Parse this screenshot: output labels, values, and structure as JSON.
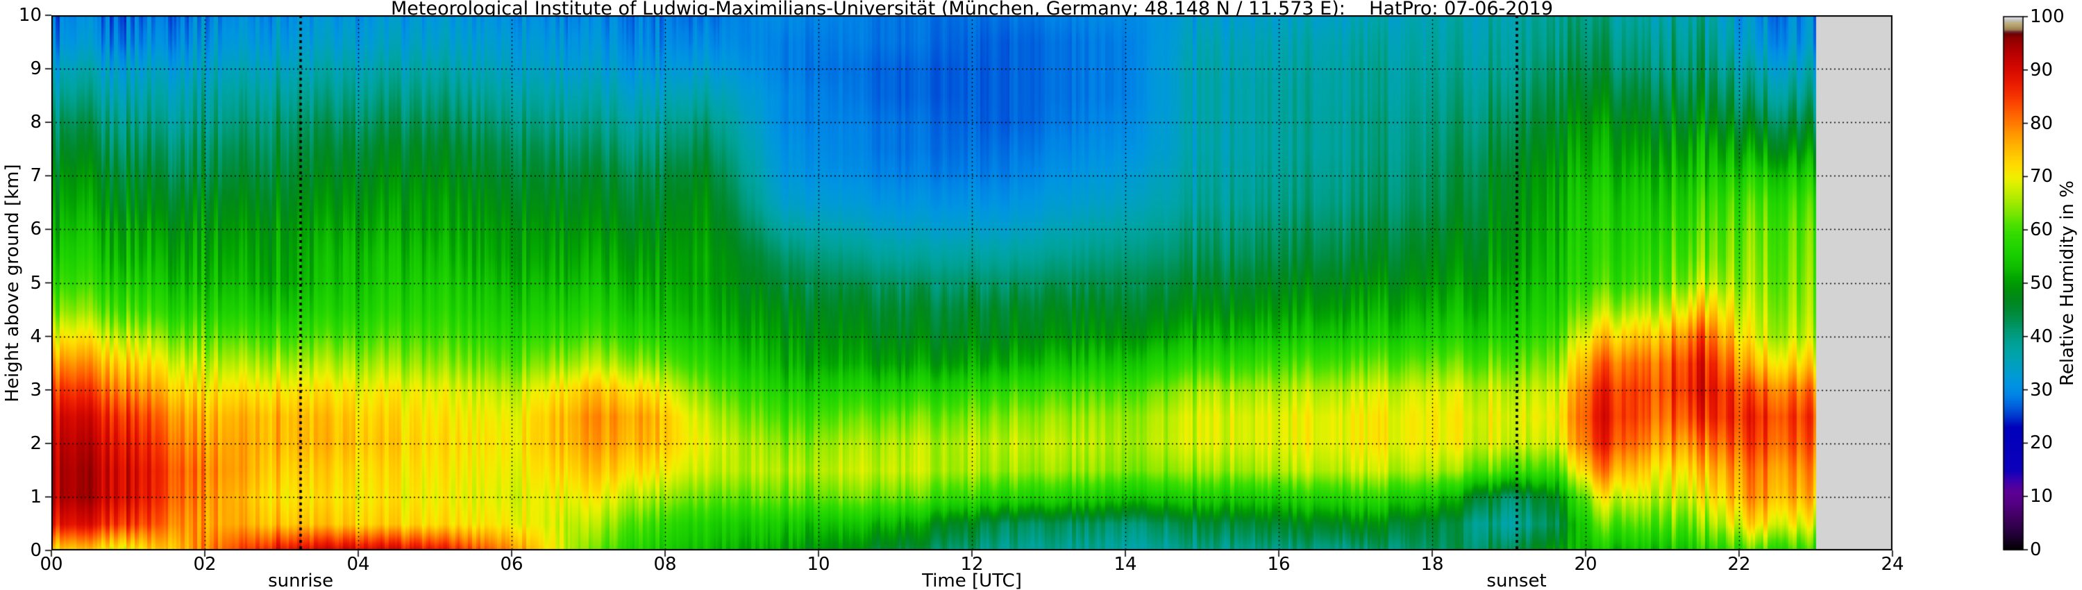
{
  "figure": {
    "title": "Meteorological Institute of Ludwig-Maximilians-Universität (München, Germany; 48.148 N / 11.573 E):    HatPro: 07-06-2019",
    "background_color": "#ffffff",
    "text_color": "#000000"
  },
  "axes": {
    "x": {
      "label": "Time [UTC]",
      "min": 0,
      "max": 24,
      "tick_values": [
        0,
        2,
        4,
        6,
        8,
        10,
        12,
        14,
        16,
        18,
        20,
        22,
        24
      ],
      "tick_labels": [
        "00",
        "02",
        "04",
        "06",
        "08",
        "10",
        "12",
        "14",
        "16",
        "18",
        "20",
        "22",
        "24"
      ]
    },
    "y": {
      "label": "Height above ground [km]",
      "min": 0,
      "max": 10,
      "tick_values": [
        0,
        1,
        2,
        3,
        4,
        5,
        6,
        7,
        8,
        9,
        10
      ],
      "tick_labels": [
        "0",
        "1",
        "2",
        "3",
        "4",
        "5",
        "6",
        "7",
        "8",
        "9",
        "10"
      ]
    },
    "grid": true,
    "grid_style": "dotted-black"
  },
  "annotations": {
    "sunrise": {
      "label": "sunrise",
      "time_utc": 3.25,
      "line_style": "bold-dotted-black"
    },
    "sunset": {
      "label": "sunset",
      "time_utc": 19.1,
      "line_style": "bold-dotted-black"
    }
  },
  "no_data": {
    "from_hour": 23,
    "to_hour": 24,
    "color": "#d3d3d3"
  },
  "colorbar": {
    "label": "Relative Humidity in %",
    "tick_values": [
      0,
      10,
      20,
      30,
      40,
      50,
      60,
      70,
      80,
      90,
      100
    ],
    "tick_labels": [
      "0",
      "10",
      "20",
      "30",
      "40",
      "50",
      "60",
      "70",
      "80",
      "90",
      "100"
    ],
    "colormap_stops": [
      [
        0,
        "#000000"
      ],
      [
        3,
        "#24003a"
      ],
      [
        6,
        "#40005f"
      ],
      [
        9,
        "#560087"
      ],
      [
        11,
        "#5c0096"
      ],
      [
        13,
        "#3c00ae"
      ],
      [
        15,
        "#0d00bb"
      ],
      [
        23,
        "#0000bb"
      ],
      [
        25,
        "#0035cc"
      ],
      [
        27,
        "#0061dd"
      ],
      [
        29,
        "#0083e6"
      ],
      [
        31,
        "#0094e2"
      ],
      [
        33,
        "#009cd2"
      ],
      [
        35,
        "#00a1bd"
      ],
      [
        37,
        "#00a4a8"
      ],
      [
        39,
        "#00a194"
      ],
      [
        41,
        "#009a76"
      ],
      [
        43,
        "#009153"
      ],
      [
        45,
        "#008a33"
      ],
      [
        47,
        "#00881c"
      ],
      [
        49,
        "#00920a"
      ],
      [
        51,
        "#02a600"
      ],
      [
        53,
        "#10bd00"
      ],
      [
        55,
        "#17cc00"
      ],
      [
        57,
        "#22d500"
      ],
      [
        59,
        "#32db00"
      ],
      [
        61,
        "#4ce100"
      ],
      [
        63,
        "#78e600"
      ],
      [
        65,
        "#9dea00"
      ],
      [
        67,
        "#c2ee00"
      ],
      [
        69,
        "#e2f100"
      ],
      [
        70,
        "#f2ef00"
      ],
      [
        72,
        "#ffdd00"
      ],
      [
        74,
        "#ffc900"
      ],
      [
        76,
        "#ffb100"
      ],
      [
        78,
        "#ff9800"
      ],
      [
        80,
        "#ff7b00"
      ],
      [
        82,
        "#ff6000"
      ],
      [
        84,
        "#fa4300"
      ],
      [
        86,
        "#f22b00"
      ],
      [
        88,
        "#e71700"
      ],
      [
        90,
        "#d80b00"
      ],
      [
        92,
        "#c60400"
      ],
      [
        94,
        "#ae0000"
      ],
      [
        96,
        "#8e0000"
      ],
      [
        96.8,
        "#700000"
      ],
      [
        97.2,
        "#6b2432"
      ],
      [
        97.6,
        "#9c7f4e"
      ],
      [
        98.4,
        "#b5a36e"
      ],
      [
        99,
        "#c2b488"
      ],
      [
        99.3,
        "#bdbdbd"
      ],
      [
        99.7,
        "#d4d4d4"
      ],
      [
        100,
        "#ebebeb"
      ]
    ]
  },
  "chart_data": {
    "type": "heatmap",
    "title": "Meteorological Institute of Ludwig-Maximilians-Universität (München, Germany; 48.148 N / 11.573 E):    HatPro: 07-06-2019",
    "xlabel": "Time [UTC]",
    "ylabel": "Height above ground [km]",
    "value_label": "Relative Humidity in %",
    "xlim": [
      0,
      24
    ],
    "ylim": [
      0,
      10
    ],
    "value_range": [
      0,
      100
    ],
    "data_end_hour": 23,
    "x_time_hours": [
      0,
      1,
      2,
      3,
      4,
      5,
      6,
      7,
      7.8,
      8.5,
      9.5,
      11,
      12.5,
      14,
      15,
      16,
      17,
      18,
      19,
      19.6,
      20.2,
      21,
      21.5,
      22.2,
      23
    ],
    "y_heights_km": [
      0,
      0.5,
      1,
      1.5,
      2,
      2.5,
      3,
      3.5,
      4,
      4.5,
      5,
      5.5,
      6,
      6.5,
      7,
      7.5,
      8,
      8.5,
      9,
      9.5,
      10
    ],
    "values_rh_percent": [
      [
        72,
        88,
        93,
        93,
        92,
        90,
        85,
        78,
        70,
        63,
        58,
        55,
        52,
        50,
        48,
        45,
        42,
        38,
        34,
        30,
        28
      ],
      [
        70,
        86,
        91,
        91,
        89,
        86,
        80,
        74,
        67,
        60,
        56,
        53,
        51,
        48,
        46,
        43,
        40,
        37,
        34,
        30,
        28
      ],
      [
        80,
        78,
        79,
        80,
        78,
        76,
        72,
        67,
        62,
        57,
        54,
        52,
        50,
        48,
        45,
        43,
        40,
        38,
        35,
        32,
        30
      ],
      [
        90,
        75,
        72,
        74,
        76,
        76,
        72,
        66,
        60,
        55,
        52,
        51,
        50,
        48,
        46,
        44,
        42,
        39,
        36,
        33,
        31
      ],
      [
        91,
        73,
        71,
        72,
        74,
        73,
        70,
        65,
        60,
        56,
        54,
        53,
        51,
        49,
        47,
        45,
        42,
        39,
        36,
        33,
        31
      ],
      [
        89,
        72,
        70,
        71,
        72,
        71,
        69,
        64,
        60,
        57,
        55,
        53,
        51,
        50,
        48,
        46,
        43,
        40,
        37,
        34,
        32
      ],
      [
        80,
        71,
        69,
        70,
        71,
        70,
        67,
        62,
        58,
        55,
        53,
        51,
        50,
        48,
        46,
        44,
        41,
        38,
        35,
        33,
        31
      ],
      [
        62,
        66,
        70,
        74,
        77,
        78,
        74,
        66,
        60,
        56,
        53,
        51,
        49,
        47,
        45,
        42,
        39,
        36,
        33,
        31,
        29
      ],
      [
        56,
        60,
        66,
        72,
        76,
        77,
        72,
        64,
        58,
        54,
        52,
        50,
        48,
        46,
        44,
        41,
        38,
        35,
        32,
        30,
        29
      ],
      [
        54,
        57,
        63,
        68,
        70,
        68,
        64,
        59,
        55,
        53,
        52,
        52,
        51,
        50,
        48,
        45,
        42,
        38,
        34,
        31,
        29
      ],
      [
        51,
        55,
        62,
        66,
        64,
        60,
        56,
        52,
        50,
        48,
        45,
        42,
        38,
        34,
        32,
        31,
        30,
        30,
        29,
        29,
        30
      ],
      [
        45,
        52,
        62,
        67,
        66,
        62,
        56,
        50,
        47,
        45,
        42,
        38,
        34,
        31,
        29,
        28,
        28,
        27,
        27,
        28,
        28
      ],
      [
        39,
        43,
        57,
        65,
        67,
        64,
        59,
        52,
        48,
        46,
        42,
        38,
        34,
        31,
        29,
        28,
        27,
        27,
        27,
        27,
        28
      ],
      [
        38,
        42,
        55,
        64,
        66,
        65,
        61,
        55,
        50,
        47,
        44,
        41,
        38,
        35,
        33,
        31,
        30,
        29,
        29,
        29,
        30
      ],
      [
        39,
        44,
        55,
        64,
        68,
        68,
        65,
        58,
        52,
        48,
        45,
        42,
        40,
        38,
        37,
        36,
        36,
        36,
        36,
        35,
        33
      ],
      [
        40,
        46,
        56,
        66,
        69,
        69,
        66,
        60,
        54,
        50,
        47,
        44,
        42,
        40,
        39,
        38,
        38,
        38,
        37,
        36,
        34
      ],
      [
        40,
        48,
        58,
        67,
        70,
        70,
        67,
        61,
        55,
        51,
        48,
        45,
        43,
        41,
        40,
        39,
        39,
        38,
        38,
        37,
        35
      ],
      [
        42,
        45,
        55,
        66,
        70,
        70,
        68,
        62,
        56,
        52,
        49,
        47,
        45,
        43,
        42,
        41,
        40,
        39,
        38,
        37,
        36
      ],
      [
        44,
        38,
        42,
        60,
        68,
        69,
        67,
        62,
        57,
        54,
        52,
        50,
        49,
        48,
        47,
        45,
        43,
        41,
        39,
        38,
        37
      ],
      [
        48,
        42,
        46,
        58,
        66,
        68,
        66,
        62,
        58,
        55,
        53,
        52,
        51,
        50,
        49,
        47,
        45,
        43,
        41,
        39,
        38
      ],
      [
        52,
        60,
        68,
        78,
        85,
        87,
        85,
        80,
        72,
        64,
        58,
        56,
        55,
        54,
        52,
        50,
        48,
        45,
        42,
        40,
        38
      ],
      [
        55,
        62,
        68,
        72,
        78,
        82,
        84,
        82,
        76,
        68,
        62,
        60,
        58,
        56,
        54,
        51,
        48,
        45,
        42,
        40,
        38
      ],
      [
        56,
        63,
        69,
        74,
        80,
        86,
        89,
        88,
        83,
        74,
        66,
        62,
        60,
        58,
        55,
        52,
        48,
        45,
        42,
        40,
        38
      ],
      [
        60,
        72,
        78,
        80,
        84,
        86,
        82,
        74,
        68,
        66,
        64,
        63,
        62,
        60,
        56,
        50,
        45,
        40,
        36,
        32,
        30
      ],
      [
        58,
        68,
        75,
        78,
        82,
        84,
        80,
        72,
        66,
        64,
        63,
        62,
        61,
        59,
        55,
        49,
        44,
        39,
        35,
        31,
        30
      ]
    ]
  }
}
